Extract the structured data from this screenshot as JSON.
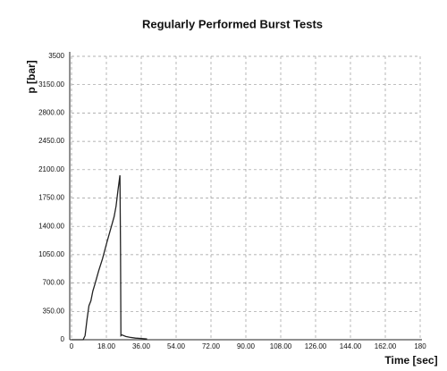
{
  "chart_data": {
    "type": "line",
    "title": "Regularly Performed Burst Tests",
    "x_label": "Time [sec]",
    "y_label": "p [bar]",
    "x": [
      0,
      6,
      7,
      8,
      9,
      10,
      11,
      12,
      14,
      16,
      18,
      20,
      22,
      23,
      24,
      25,
      25.3,
      25.5,
      26,
      28,
      30,
      33,
      36,
      39
    ],
    "series": [
      {
        "name": "p",
        "color": "#222222",
        "values": [
          0,
          0,
          50,
          250,
          420,
          480,
          600,
          680,
          850,
          1000,
          1180,
          1350,
          1520,
          1650,
          1850,
          2030,
          1100,
          50,
          60,
          40,
          30,
          20,
          15,
          10
        ]
      }
    ],
    "xlim": [
      0,
      180
    ],
    "xticks": [
      0,
      {
        "value": 18,
        "label": "18.00"
      },
      {
        "value": 36,
        "label": "36.00"
      },
      {
        "value": 54,
        "label": "54.00"
      },
      {
        "value": 72,
        "label": "72.00"
      },
      {
        "value": 90,
        "label": "90.00"
      },
      {
        "value": 108,
        "label": "108.00"
      },
      {
        "value": 126,
        "label": "126.00"
      },
      {
        "value": 144,
        "label": "144.00"
      },
      {
        "value": 162,
        "label": "162.00"
      },
      180
    ],
    "ylim": [
      0,
      3500
    ],
    "yticks": [
      0,
      {
        "value": 350,
        "label": "350.00"
      },
      {
        "value": 700,
        "label": "700.00"
      },
      {
        "value": 1050,
        "label": "1050.00"
      },
      {
        "value": 1400,
        "label": "1400.00"
      },
      {
        "value": 1750,
        "label": "1750.00"
      },
      {
        "value": 2100,
        "label": "2100.00"
      },
      {
        "value": 2450,
        "label": "2450.00"
      },
      {
        "value": 2800,
        "label": "2800.00"
      },
      {
        "value": 3150,
        "label": "3150.00"
      },
      3500
    ],
    "grid": true
  }
}
